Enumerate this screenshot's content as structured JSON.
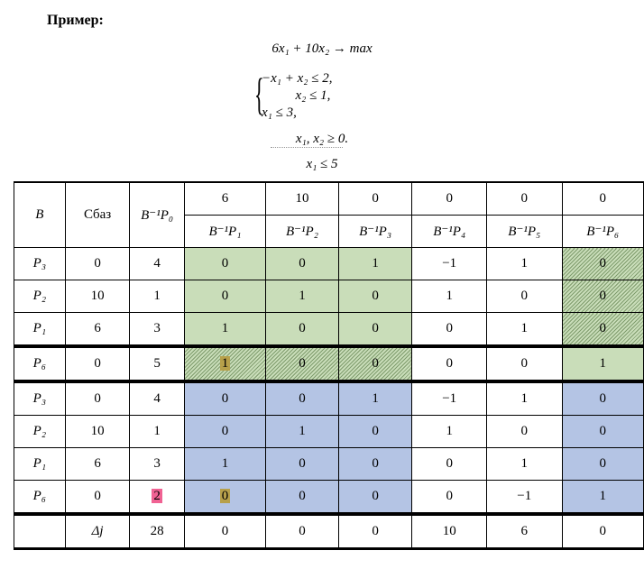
{
  "title": "Пример:",
  "objective": "6x₁ + 10x₂ → max",
  "constraints": [
    "−x₁ + x₂ ≤ 2,",
    "x₂ ≤ 1,",
    "x₁ ≤ 3,"
  ],
  "nonneg": "x₁, x₂ ≥ 0.",
  "cut": "x₁ ≤ 5",
  "table": {
    "header1": [
      "B",
      "Cбаз",
      "B⁻¹P₀",
      "6",
      "10",
      "0",
      "0",
      "0",
      "0"
    ],
    "header2": [
      "B⁻¹P₁",
      "B⁻¹P₂",
      "B⁻¹P₃",
      "B⁻¹P₄",
      "B⁻¹P₅",
      "B⁻¹P₆"
    ],
    "rows": [
      [
        "P₃",
        "0",
        "4",
        "0",
        "0",
        "1",
        "−1",
        "1",
        "0"
      ],
      [
        "P₂",
        "10",
        "1",
        "0",
        "1",
        "0",
        "1",
        "0",
        "0"
      ],
      [
        "P₁",
        "6",
        "3",
        "1",
        "0",
        "0",
        "0",
        "1",
        "0"
      ],
      [
        "P₆",
        "0",
        "5",
        "1",
        "0",
        "0",
        "0",
        "0",
        "1"
      ],
      [
        "P₃",
        "0",
        "4",
        "0",
        "0",
        "1",
        "−1",
        "1",
        "0"
      ],
      [
        "P₂",
        "10",
        "1",
        "0",
        "1",
        "0",
        "1",
        "0",
        "0"
      ],
      [
        "P₁",
        "6",
        "3",
        "1",
        "0",
        "0",
        "0",
        "1",
        "0"
      ],
      [
        "P₆",
        "0",
        "2",
        "0",
        "0",
        "0",
        "0",
        "−1",
        "1"
      ]
    ],
    "delta": [
      "",
      "Δj",
      "28",
      "0",
      "0",
      "0",
      "10",
      "6",
      "0"
    ]
  },
  "colors": {
    "green": "#c9ddb9",
    "blue": "#b4c4e4",
    "olive": "#b7a04a",
    "pink": "#f06293"
  }
}
